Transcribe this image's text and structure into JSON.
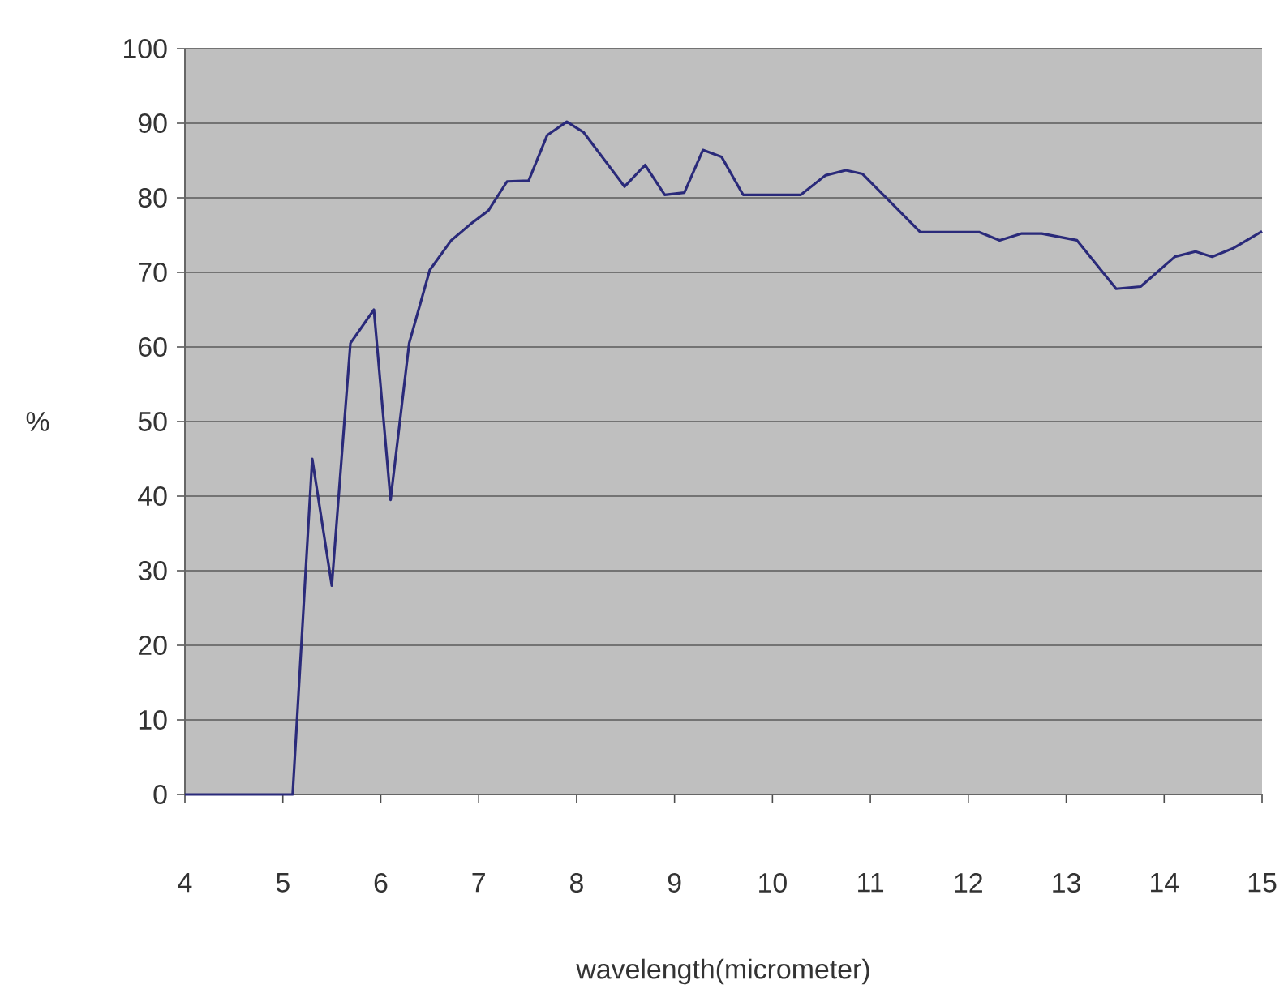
{
  "chart_data": {
    "type": "line",
    "xlabel": "wavelength(micrometer)",
    "ylabel": "%",
    "xlim": [
      4,
      15
    ],
    "xticks": [
      4,
      5,
      6,
      7,
      8,
      9,
      10,
      11,
      12,
      13,
      14,
      15
    ],
    "ylim": [
      0,
      100
    ],
    "yticks": [
      0,
      10,
      20,
      30,
      40,
      50,
      60,
      70,
      80,
      90,
      100
    ],
    "grid": "y",
    "marker": "none",
    "line_style": "solid",
    "series": [
      {
        "color": "#2a2a7a",
        "x": [
          4,
          5.1,
          5.3,
          5.5,
          5.69,
          5.93,
          6.1,
          6.29,
          6.5,
          6.72,
          6.91,
          7.1,
          7.29,
          7.51,
          7.7,
          7.9,
          8.07,
          8.49,
          8.7,
          8.9,
          9.1,
          9.29,
          9.48,
          9.7,
          10.29,
          10.54,
          10.75,
          10.92,
          11.51,
          12.11,
          12.32,
          12.54,
          12.75,
          13.11,
          13.51,
          13.76,
          14.11,
          14.32,
          14.49,
          14.7,
          15
        ],
        "values": [
          0,
          0,
          45,
          28,
          60.5,
          65,
          39.5,
          60.5,
          70.3,
          74.3,
          76.4,
          78.3,
          82.2,
          82.3,
          88.4,
          90.2,
          88.8,
          81.5,
          84.4,
          80.4,
          80.7,
          86.4,
          85.5,
          80.4,
          80.4,
          83,
          83.7,
          83.2,
          75.4,
          75.4,
          74.3,
          75.2,
          75.2,
          74.3,
          67.8,
          68.1,
          72.1,
          72.8,
          72.1,
          73.2,
          75.5
        ]
      }
    ]
  }
}
